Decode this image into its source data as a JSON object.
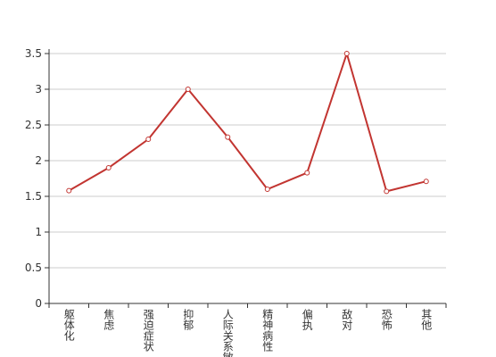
{
  "chart_data": {
    "type": "line",
    "categories": [
      "躯体化",
      "焦虑",
      "强迫症状",
      "抑郁",
      "人际关系敏感",
      "精神病性",
      "偏执",
      "敌对",
      "恐怖",
      "其他"
    ],
    "values": [
      1.58,
      1.9,
      2.3,
      3.0,
      2.33,
      1.6,
      1.83,
      3.5,
      1.57,
      1.71
    ],
    "color": "#c23531",
    "ylim": [
      0,
      3.5
    ],
    "yticks": [
      0,
      0.5,
      1,
      1.5,
      2,
      2.5,
      3,
      3.5
    ],
    "grid": true
  }
}
